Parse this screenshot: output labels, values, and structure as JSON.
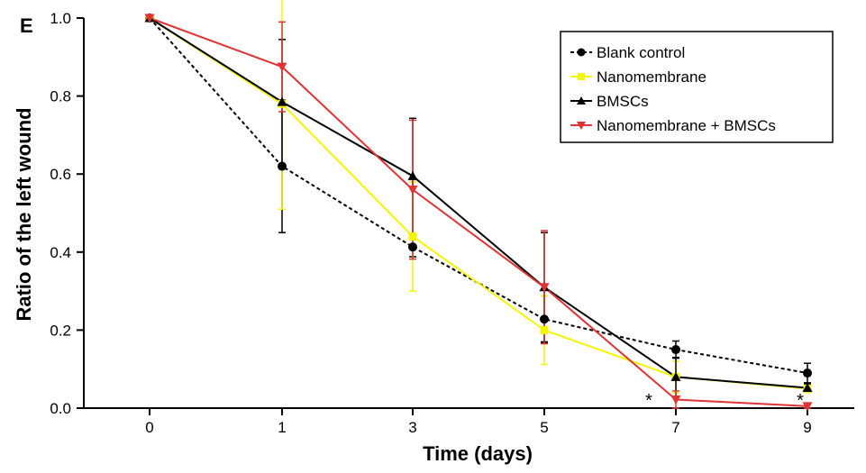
{
  "panel_label": "E",
  "chart_data": {
    "type": "line",
    "title": "",
    "xlabel": "Time (days)",
    "ylabel": "Ratio of the left wound",
    "categories": [
      "0",
      "1",
      "3",
      "5",
      "7",
      "9"
    ],
    "ylim": [
      0.0,
      1.0
    ],
    "yticks": [
      "0.0",
      "0.2",
      "0.4",
      "0.6",
      "0.8",
      "1.0"
    ],
    "grid": false,
    "legend_position": "top-right",
    "series": [
      {
        "name": "Blank control",
        "color": "#000000",
        "dash": "dotted",
        "marker": "circle",
        "values": [
          1.0,
          0.62,
          0.413,
          0.228,
          0.15,
          0.09
        ],
        "errors": [
          0.0,
          0.17,
          0.025,
          0.06,
          0.022,
          0.025
        ]
      },
      {
        "name": "Nanomembrane",
        "color": "#f5f500",
        "dash": "solid",
        "marker": "square",
        "values": [
          1.0,
          0.78,
          0.44,
          0.2,
          0.08,
          0.05
        ],
        "errors": [
          0.0,
          0.27,
          0.14,
          0.088,
          0.04,
          0.01
        ]
      },
      {
        "name": "BMSCs",
        "color": "#000000",
        "dash": "solid",
        "marker": "triangle-up",
        "values": [
          1.0,
          0.785,
          0.595,
          0.31,
          0.08,
          0.052
        ],
        "errors": [
          0.0,
          0.16,
          0.148,
          0.14,
          0.05,
          0.01
        ]
      },
      {
        "name": "Nanomembrane + BMSCs",
        "color": "#e03434",
        "dash": "solid",
        "marker": "triangle-down",
        "values": [
          1.0,
          0.875,
          0.56,
          0.31,
          0.022,
          0.005
        ],
        "errors": [
          0.0,
          0.115,
          0.178,
          0.145,
          0.022,
          0.005
        ]
      }
    ],
    "annotations": [
      {
        "text": "*",
        "x": "7"
      },
      {
        "text": "*",
        "x": "9"
      }
    ]
  }
}
